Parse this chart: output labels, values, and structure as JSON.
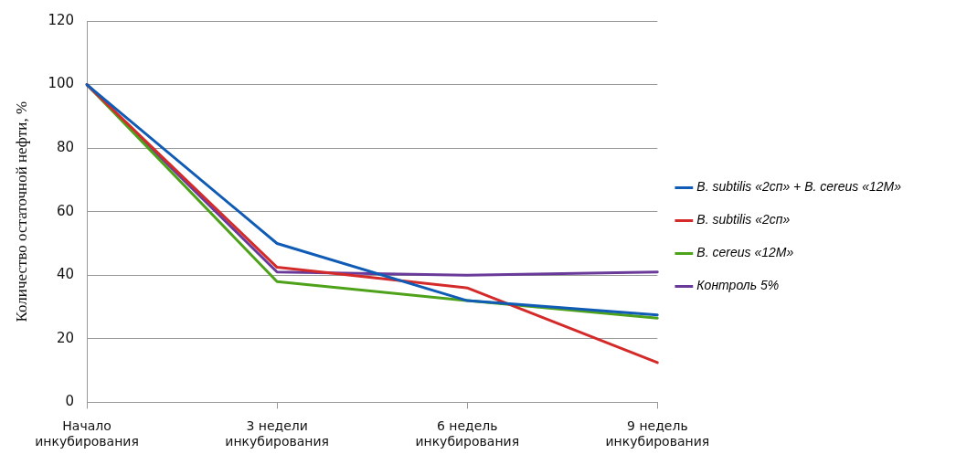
{
  "chart_data": {
    "type": "line",
    "ylabel": "Количество остаточной нефти, %",
    "categories": [
      "Начало инкубирования",
      "3 недели инкубирования",
      "6 недель инкубирования",
      "9 недель инкубирования"
    ],
    "series": [
      {
        "name": "B. subtilis «2сп» + B. cereus «12M»",
        "color": "#0f5bb5",
        "values": [
          100,
          50,
          32,
          27.5
        ]
      },
      {
        "name": "B. subtilis «2сп»",
        "color": "#d42a2a",
        "values": [
          100,
          42.5,
          36,
          12.5
        ]
      },
      {
        "name": "B. cereus «12M»",
        "color": "#4ea21a",
        "values": [
          100,
          38,
          32,
          26.5
        ]
      },
      {
        "name": "Контроль 5%",
        "color": "#6a3a9a",
        "values": [
          100,
          41,
          40,
          41
        ]
      }
    ],
    "ylim": [
      0,
      120
    ],
    "yticks": [
      0,
      20,
      40,
      60,
      80,
      100,
      120
    ],
    "grid": "y",
    "legend": "right",
    "marker": "none",
    "line_style": "solid"
  }
}
